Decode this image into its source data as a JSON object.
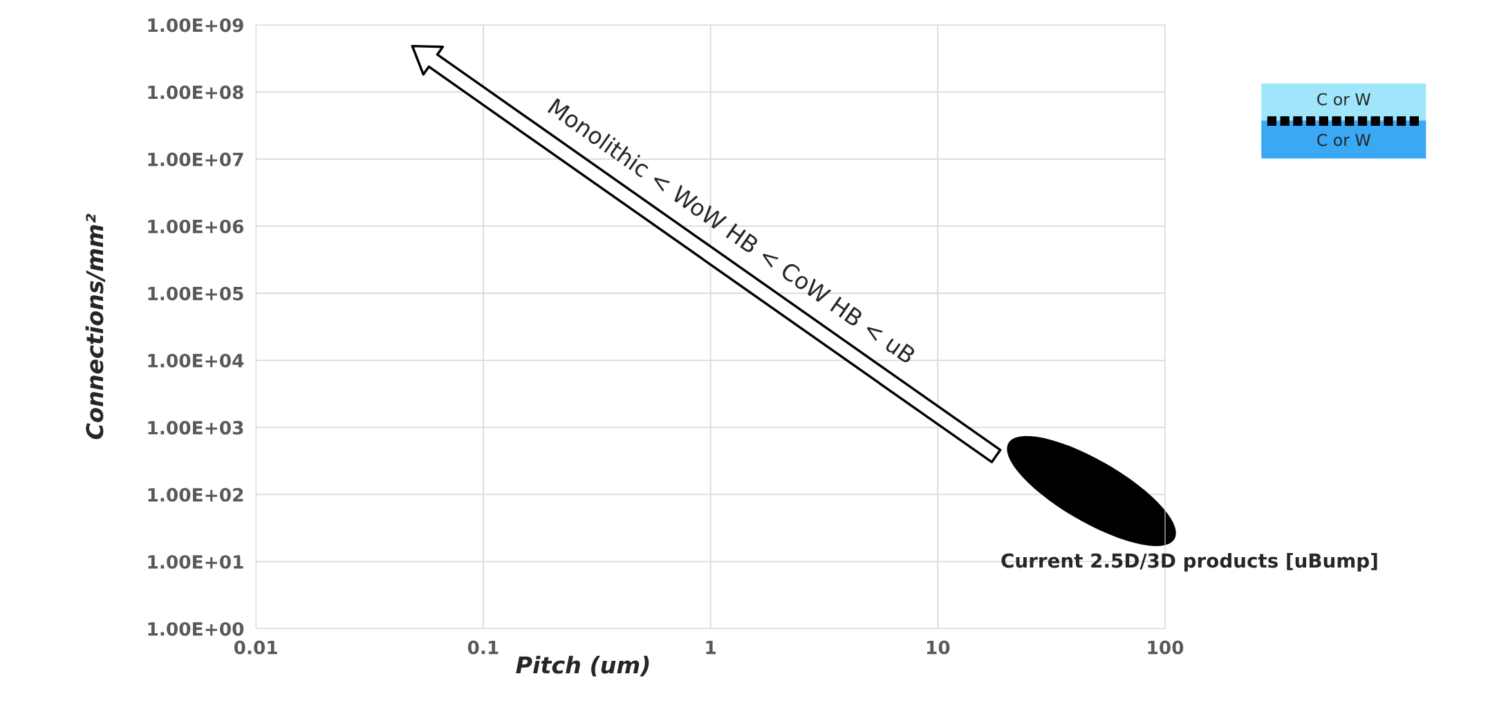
{
  "chart_data": {
    "type": "scatter",
    "xlabel": "Pitch (um)",
    "ylabel": "Connections/mm²",
    "log": "xy",
    "grid": true,
    "xlim": [
      0.01,
      100
    ],
    "xticks": [
      0.01,
      0.1,
      1,
      10,
      100
    ],
    "ylim": [
      1,
      1000000000
    ],
    "yticks": [
      {
        "value": 1,
        "label": "1.00E+00"
      },
      {
        "value": 10,
        "label": "1.00E+01"
      },
      {
        "value": 100,
        "label": "1.00E+02"
      },
      {
        "value": 1000,
        "label": "1.00E+03"
      },
      {
        "value": 10000,
        "label": "1.00E+04"
      },
      {
        "value": 100000,
        "label": "1.00E+05"
      },
      {
        "value": 1000000,
        "label": "1.00E+06"
      },
      {
        "value": 10000000,
        "label": "1.00E+07"
      },
      {
        "value": 100000000,
        "label": "1.00E+08"
      },
      {
        "value": 1000000000,
        "label": "1.00E+09"
      }
    ],
    "annotations": [
      "Monolithic < WoW HB < CoW HB < uB",
      "Current 2.5D/3D products [uBump]",
      "C or W",
      "C or W"
    ]
  }
}
